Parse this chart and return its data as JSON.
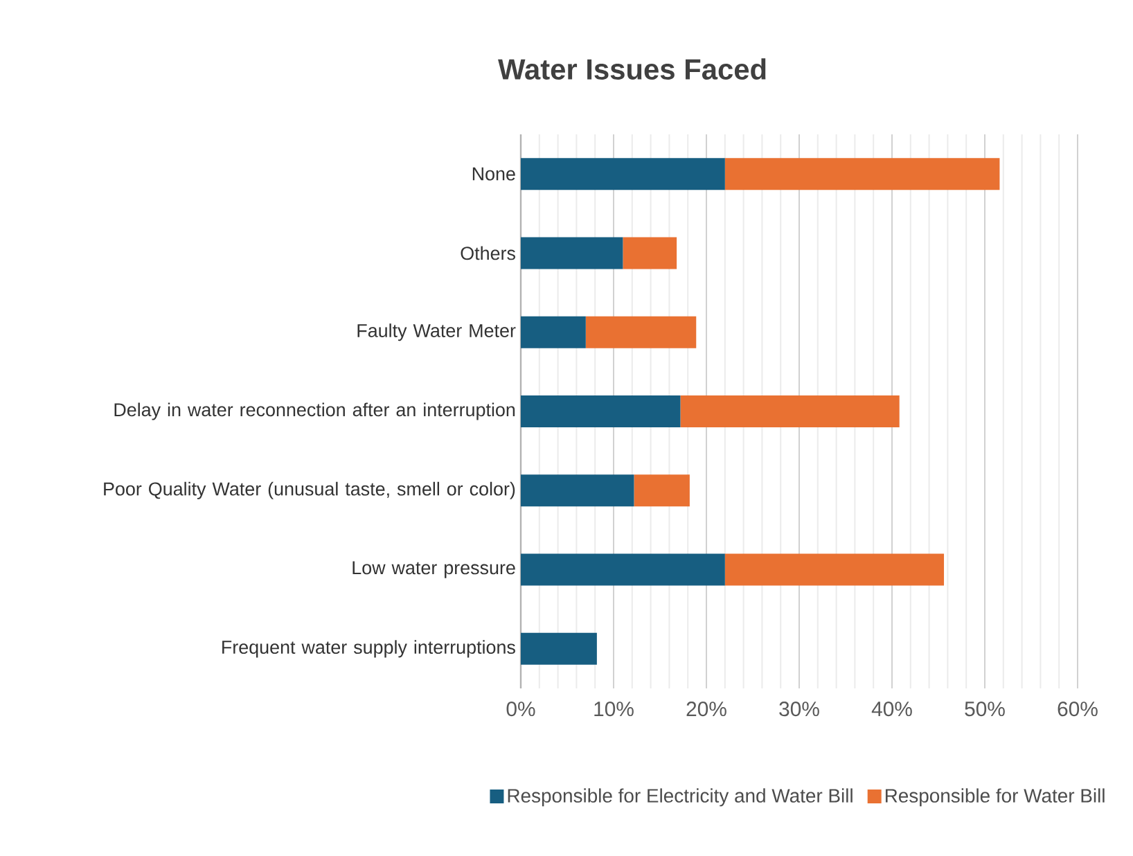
{
  "chart_data": {
    "type": "bar",
    "orientation": "horizontal",
    "stacked": true,
    "title": "Water Issues Faced",
    "categories": [
      "None",
      "Others",
      "Faulty Water Meter",
      "Delay in water reconnection after an interruption",
      "Poor Quality Water (unusual taste, smell or color)",
      "Low water pressure",
      "Frequent water supply interruptions"
    ],
    "series": [
      {
        "name": "Responsible for Electricity and Water Bill",
        "color": "#175e81",
        "values": [
          22,
          11,
          7,
          17.2,
          12.2,
          22,
          8.2
        ]
      },
      {
        "name": "Responsible for Water Bill",
        "color": "#e97132",
        "values": [
          29.6,
          5.8,
          11.9,
          23.6,
          6,
          23.6,
          0
        ]
      }
    ],
    "xlim": [
      0,
      60
    ],
    "xticks": [
      {
        "value": 0,
        "label": "0%"
      },
      {
        "value": 2,
        "label": null
      },
      {
        "value": 4,
        "label": null
      },
      {
        "value": 6,
        "label": null
      },
      {
        "value": 8,
        "label": null
      },
      {
        "value": 10,
        "label": "10%"
      },
      {
        "value": 12,
        "label": null
      },
      {
        "value": 14,
        "label": null
      },
      {
        "value": 16,
        "label": null
      },
      {
        "value": 18,
        "label": null
      },
      {
        "value": 20,
        "label": "20%"
      },
      {
        "value": 22,
        "label": null
      },
      {
        "value": 24,
        "label": null
      },
      {
        "value": 26,
        "label": null
      },
      {
        "value": 28,
        "label": null
      },
      {
        "value": 30,
        "label": "30%"
      },
      {
        "value": 32,
        "label": null
      },
      {
        "value": 34,
        "label": null
      },
      {
        "value": 36,
        "label": null
      },
      {
        "value": 38,
        "label": null
      },
      {
        "value": 40,
        "label": "40%"
      },
      {
        "value": 42,
        "label": null
      },
      {
        "value": 44,
        "label": null
      },
      {
        "value": 46,
        "label": null
      },
      {
        "value": 48,
        "label": null
      },
      {
        "value": 50,
        "label": "50%"
      },
      {
        "value": 52,
        "label": null
      },
      {
        "value": 54,
        "label": null
      },
      {
        "value": 56,
        "label": null
      },
      {
        "value": 58,
        "label": null
      },
      {
        "value": 60,
        "label": "60%"
      }
    ],
    "grid": "x",
    "legend": "bottom"
  }
}
